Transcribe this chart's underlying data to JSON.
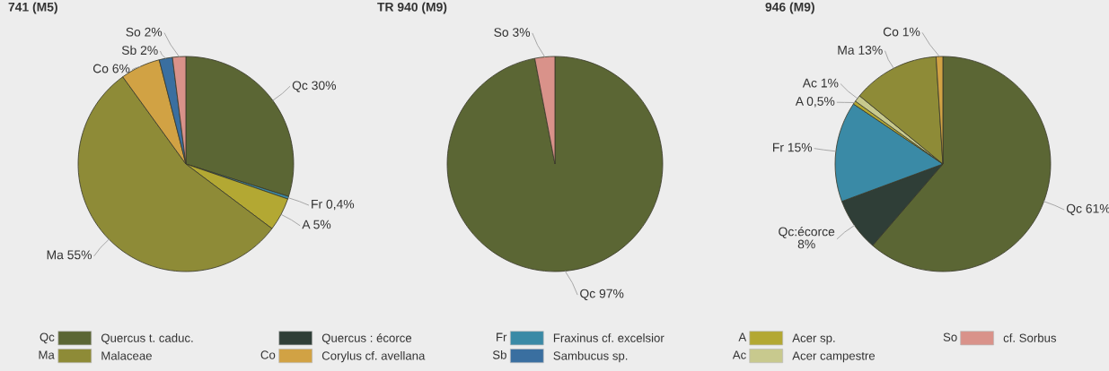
{
  "chart_data": [
    {
      "type": "pie",
      "title": "741 (M5)",
      "legend": "bottom",
      "categories": [
        "Qc",
        "Fr",
        "A",
        "Ma",
        "Co",
        "Sb",
        "So"
      ],
      "values": [
        30,
        0.4,
        5,
        55,
        6,
        2,
        2
      ],
      "value_labels": [
        "30%",
        "0,4%",
        "5%",
        "55%",
        "6%",
        "2%",
        "2%"
      ],
      "colors": [
        "#5b6634",
        "#3a8aa6",
        "#b3a833",
        "#8e8b37",
        "#d1a244",
        "#3a6fa0",
        "#d9928a"
      ]
    },
    {
      "type": "pie",
      "title": "TR 940 (M9)",
      "categories": [
        "Qc",
        "So"
      ],
      "values": [
        97,
        3
      ],
      "value_labels": [
        "97%",
        "3%"
      ],
      "colors": [
        "#5b6634",
        "#d9928a"
      ]
    },
    {
      "type": "pie",
      "title": "946 (M9)",
      "categories": [
        "Qc",
        "Qc:écorce",
        "Fr",
        "A",
        "Ac",
        "Ma",
        "Co"
      ],
      "values": [
        61,
        8,
        15,
        0.5,
        1,
        13,
        1
      ],
      "value_labels": [
        "61%",
        "8%",
        "15%",
        "0,5%",
        "1%",
        "13%",
        "1%"
      ],
      "colors": [
        "#5b6634",
        "#2f3e37",
        "#3a8aa6",
        "#b3a833",
        "#c8c98e",
        "#8e8b37",
        "#d1a244"
      ]
    },
    {
      "type": "other",
      "categories": [
        "Qc",
        "Ma",
        null,
        "Co",
        "Fr",
        "Sb",
        "A",
        "Ac",
        "So"
      ],
      "annotations": [
        "Quercus t. caduc.",
        "Malaceae",
        "Quercus : écorce",
        "Corylus cf. avellana",
        "Fraxinus cf. excelsior",
        "Sambucus sp.",
        "Acer sp.",
        "Acer campestre",
        "cf. Sorbus"
      ],
      "colors": [
        "#5b6634",
        "#8e8b37",
        "#2f3e37",
        "#d1a244",
        "#3a8aa6",
        "#3a6fa0",
        "#b3a833",
        "#c8c98e",
        "#d9928a"
      ]
    }
  ]
}
